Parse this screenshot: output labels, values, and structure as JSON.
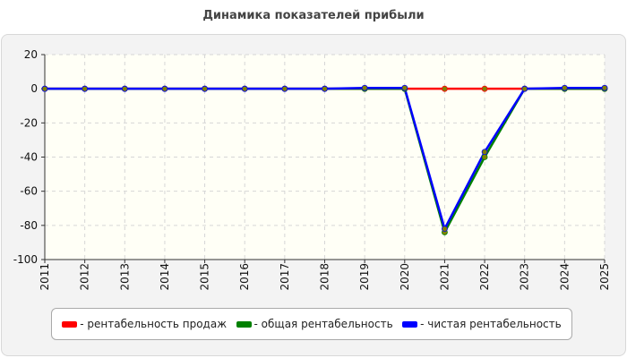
{
  "chart_data": {
    "type": "line",
    "title": "Динамика показателей прибыли",
    "xlabel": "",
    "ylabel": "",
    "x": [
      "2011",
      "2012",
      "2013",
      "2014",
      "2015",
      "2016",
      "2017",
      "2018",
      "2019",
      "2020",
      "2021",
      "2022",
      "2023",
      "2024",
      "2025"
    ],
    "ylim": [
      -100,
      20
    ],
    "yticks": [
      20,
      0,
      -20,
      -40,
      -60,
      -80,
      -100
    ],
    "grid": true,
    "legend_position": "bottom",
    "series": [
      {
        "name": "- рентабельность продаж",
        "color": "#ff0000",
        "values": [
          0,
          0,
          0,
          0,
          0,
          0,
          0,
          0,
          0,
          0,
          0,
          0,
          0,
          0,
          0
        ]
      },
      {
        "name": "- общая рентабельность",
        "color": "#008000",
        "values": [
          0,
          0,
          0,
          0,
          0,
          0,
          0,
          0,
          0,
          0,
          -84,
          -40,
          0,
          0,
          0
        ]
      },
      {
        "name": "- чистая рентабельность",
        "color": "#0000ff",
        "values": [
          0,
          0,
          0,
          0,
          0,
          0,
          0,
          0,
          0.5,
          0.5,
          -82,
          -37,
          0,
          0.5,
          0.5
        ]
      }
    ],
    "overlay_color": "#808000"
  }
}
